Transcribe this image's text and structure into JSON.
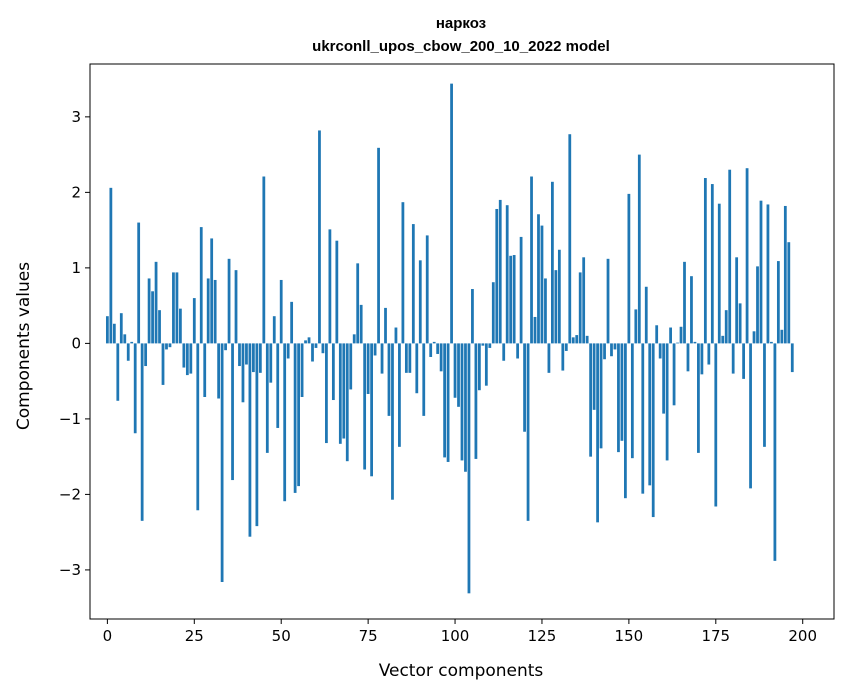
{
  "chart_data": {
    "type": "bar",
    "title": "наркоз",
    "subtitle": "ukrconll_upos_cbow_200_10_2022 model",
    "xlabel": "Vector components",
    "ylabel": "Components values",
    "xlim": [
      -5,
      209
    ],
    "ylim": [
      -3.65,
      3.7
    ],
    "xticks": [
      0,
      25,
      50,
      75,
      100,
      125,
      150,
      175,
      200
    ],
    "yticks": [
      -3,
      -2,
      -1,
      0,
      1,
      2,
      3
    ],
    "grid": false,
    "color": "#1f77b4",
    "values": [
      0.36,
      2.06,
      0.26,
      -0.76,
      0.4,
      0.12,
      -0.23,
      0.02,
      -1.19,
      1.6,
      -2.35,
      -0.3,
      0.86,
      0.69,
      1.08,
      0.44,
      -0.55,
      -0.08,
      -0.05,
      0.94,
      0.94,
      0.46,
      -0.32,
      -0.42,
      -0.4,
      0.6,
      -2.21,
      1.54,
      -0.71,
      0.86,
      1.39,
      0.84,
      -0.73,
      -3.16,
      -0.09,
      1.12,
      -1.81,
      0.97,
      -0.3,
      -0.78,
      -0.28,
      -2.56,
      -0.38,
      -2.42,
      -0.39,
      2.21,
      -1.45,
      -0.52,
      0.36,
      -1.12,
      0.84,
      -2.09,
      -0.2,
      0.55,
      -1.98,
      -1.89,
      -0.71,
      0.04,
      0.08,
      -0.24,
      -0.06,
      2.82,
      -0.13,
      -1.32,
      1.51,
      -0.75,
      1.36,
      -1.33,
      -1.26,
      -1.56,
      -0.61,
      0.12,
      1.06,
      0.51,
      -1.67,
      -0.67,
      -1.76,
      -0.16,
      2.59,
      -0.4,
      0.47,
      -0.96,
      -2.07,
      0.21,
      -1.37,
      1.87,
      -0.39,
      -0.39,
      1.58,
      -0.66,
      1.1,
      -0.96,
      1.43,
      -0.18,
      0.02,
      -0.14,
      -0.37,
      -1.51,
      -1.57,
      3.44,
      -0.72,
      -0.84,
      -1.55,
      -1.7,
      -3.31,
      0.72,
      -1.53,
      -0.62,
      -0.03,
      -0.56,
      -0.06,
      0.81,
      1.78,
      1.9,
      -0.23,
      1.83,
      1.16,
      1.17,
      -0.2,
      1.41,
      -1.17,
      -2.35,
      2.21,
      0.35,
      1.71,
      1.56,
      0.86,
      -0.39,
      2.14,
      0.97,
      1.24,
      -0.36,
      -0.1,
      2.77,
      0.08,
      0.11,
      0.94,
      1.14,
      0.1,
      -1.5,
      -0.88,
      -2.37,
      -1.39,
      -0.21,
      1.12,
      -0.17,
      -0.08,
      -1.44,
      -1.29,
      -2.05,
      1.98,
      -1.52,
      0.45,
      2.5,
      -1.99,
      0.75,
      -1.88,
      -2.3,
      0.24,
      -0.2,
      -0.93,
      -1.55,
      0.21,
      -0.82,
      0.01,
      0.22,
      1.08,
      -0.37,
      0.89,
      0.02,
      -1.45,
      -0.41,
      2.19,
      -0.28,
      2.11,
      -2.16,
      1.85,
      0.1,
      0.44,
      2.3,
      -0.4,
      1.14,
      0.53,
      -0.47,
      2.32,
      -1.92,
      0.16,
      1.02,
      1.89,
      -1.37,
      1.84,
      0.02,
      -2.88,
      1.09,
      0.18,
      1.82,
      1.34,
      -0.38
    ]
  }
}
